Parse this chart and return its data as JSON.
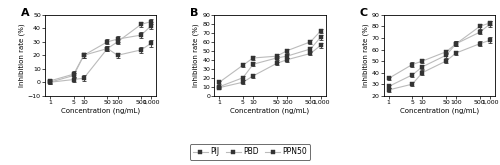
{
  "x_labels": [
    "1",
    "5",
    "10",
    "50",
    "100",
    "500",
    "1,000"
  ],
  "x_vals": [
    1,
    5,
    10,
    50,
    100,
    500,
    1000
  ],
  "panel_A": {
    "title": "A",
    "ylim": [
      -10,
      50
    ],
    "yticks": [
      -10,
      0,
      10,
      20,
      30,
      40,
      50
    ],
    "PIJ": [
      0,
      2,
      3,
      25,
      20,
      24,
      29
    ],
    "PIJ_err": [
      1.5,
      2,
      2,
      2,
      2,
      2.5,
      2.5
    ],
    "PBD": [
      0,
      5,
      20,
      30,
      32,
      35,
      42
    ],
    "PBD_err": [
      1,
      2,
      2,
      2,
      2,
      2,
      2.5
    ],
    "PPN50": [
      1,
      6,
      20,
      25,
      30,
      43,
      45
    ],
    "PPN50_err": [
      1.5,
      2,
      2,
      2,
      2,
      2,
      2
    ]
  },
  "panel_B": {
    "title": "B",
    "ylim": [
      0,
      90
    ],
    "yticks": [
      0,
      10,
      20,
      30,
      40,
      50,
      60,
      70,
      80,
      90
    ],
    "PIJ": [
      9,
      15,
      22,
      36,
      40,
      47,
      56
    ],
    "PIJ_err": [
      1,
      2,
      2,
      2,
      2,
      2,
      2.5
    ],
    "PBD": [
      10,
      20,
      35,
      42,
      44,
      52,
      65
    ],
    "PBD_err": [
      1,
      2,
      2,
      2,
      2,
      2,
      2.5
    ],
    "PPN50": [
      15,
      34,
      42,
      44,
      50,
      60,
      72
    ],
    "PPN50_err": [
      1.5,
      2,
      2,
      2,
      2,
      2,
      2.5
    ]
  },
  "panel_C": {
    "title": "C",
    "ylim": [
      20,
      90
    ],
    "yticks": [
      20,
      30,
      40,
      50,
      60,
      70,
      80,
      90
    ],
    "PIJ": [
      25,
      30,
      40,
      50,
      57,
      65,
      68
    ],
    "PIJ_err": [
      1.5,
      2,
      2,
      2,
      2,
      2,
      2.5
    ],
    "PBD": [
      28,
      38,
      45,
      55,
      65,
      75,
      82
    ],
    "PBD_err": [
      1.5,
      2,
      2,
      2,
      2,
      2,
      2.5
    ],
    "PPN50": [
      35,
      47,
      50,
      58,
      65,
      80,
      83
    ],
    "PPN50_err": [
      1.5,
      2,
      2,
      2,
      2,
      2,
      2
    ]
  },
  "series": [
    "PIJ",
    "PBD",
    "PPN50"
  ],
  "marker": "s",
  "line_color": "#bbbbbb",
  "marker_color": "#333333",
  "xlabel": "Concentration (ng/mL)",
  "ylabel": "Inhibition rate (%)"
}
